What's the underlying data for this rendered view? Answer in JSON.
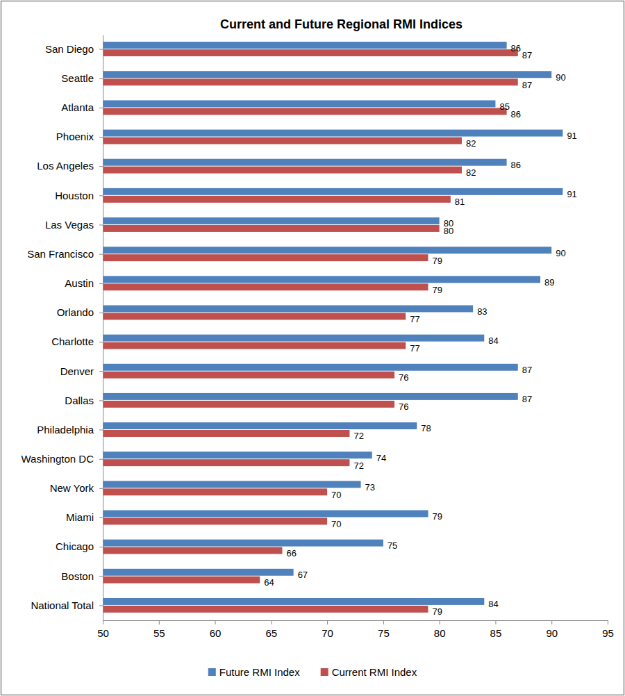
{
  "chart_data": {
    "type": "bar",
    "title": "Current and Future Regional RMI Indices",
    "orientation": "horizontal",
    "categories": [
      "San Diego",
      "Seattle",
      "Atlanta",
      "Phoenix",
      "Los Angeles",
      "Houston",
      "Las Vegas",
      "San Francisco",
      "Austin",
      "Orlando",
      "Charlotte",
      "Denver",
      "Dallas",
      "Philadelphia",
      "Washington DC",
      "New York",
      "Miami",
      "Chicago",
      "Boston",
      "National Total"
    ],
    "series": [
      {
        "name": "Future RMI Index",
        "color": "#4F81BD",
        "values": [
          86,
          90,
          85,
          91,
          86,
          91,
          80,
          90,
          89,
          83,
          84,
          87,
          87,
          78,
          74,
          73,
          79,
          75,
          67,
          84
        ]
      },
      {
        "name": "Current RMI Index",
        "color": "#C0504D",
        "values": [
          87,
          87,
          86,
          82,
          82,
          81,
          80,
          79,
          79,
          77,
          77,
          76,
          76,
          72,
          72,
          70,
          70,
          66,
          64,
          79
        ]
      }
    ],
    "xlim": [
      50,
      95
    ],
    "xticks": [
      50,
      55,
      60,
      65,
      70,
      75,
      80,
      85,
      90,
      95
    ],
    "data_labels": true,
    "legend": "bottom",
    "grid": false
  }
}
